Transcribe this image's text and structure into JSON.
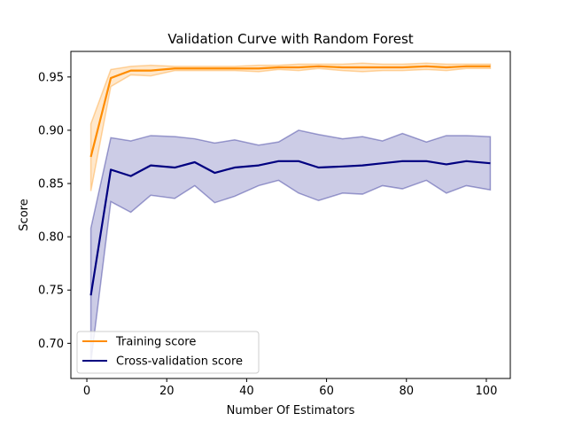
{
  "chart_data": {
    "type": "line",
    "title": "Validation Curve with Random Forest",
    "xlabel": "Number Of  Estimators",
    "ylabel": "Score",
    "xlim": [
      -4,
      106
    ],
    "ylim": [
      0.667,
      0.974
    ],
    "xticks": [
      0,
      20,
      40,
      60,
      80,
      100
    ],
    "yticks": [
      0.7,
      0.75,
      0.8,
      0.85,
      0.9,
      0.95
    ],
    "xtick_labels": [
      "0",
      "20",
      "40",
      "60",
      "80",
      "100"
    ],
    "ytick_labels": [
      "0.70",
      "0.75",
      "0.80",
      "0.85",
      "0.90",
      "0.95"
    ],
    "legend_position": "lower-left",
    "x": [
      1,
      6,
      11,
      16,
      22,
      27,
      32,
      37,
      43,
      48,
      53,
      58,
      64,
      69,
      74,
      79,
      85,
      90,
      95,
      101
    ],
    "series": [
      {
        "name": "Training score",
        "color": "#ff8c00",
        "values": [
          0.875,
          0.949,
          0.956,
          0.956,
          0.958,
          0.958,
          0.958,
          0.958,
          0.958,
          0.959,
          0.959,
          0.96,
          0.959,
          0.959,
          0.959,
          0.959,
          0.96,
          0.959,
          0.96,
          0.96
        ],
        "lower": [
          0.843,
          0.941,
          0.952,
          0.951,
          0.956,
          0.956,
          0.956,
          0.956,
          0.955,
          0.957,
          0.956,
          0.958,
          0.956,
          0.955,
          0.956,
          0.956,
          0.957,
          0.956,
          0.958,
          0.958
        ],
        "upper": [
          0.906,
          0.957,
          0.96,
          0.961,
          0.96,
          0.96,
          0.96,
          0.96,
          0.961,
          0.961,
          0.962,
          0.962,
          0.962,
          0.963,
          0.962,
          0.962,
          0.963,
          0.962,
          0.962,
          0.962
        ]
      },
      {
        "name": "Cross-validation score",
        "color": "#000080",
        "values": [
          0.745,
          0.863,
          0.857,
          0.867,
          0.865,
          0.87,
          0.86,
          0.865,
          0.867,
          0.871,
          0.871,
          0.865,
          0.866,
          0.867,
          0.869,
          0.871,
          0.871,
          0.868,
          0.871,
          0.869
        ],
        "lower": [
          0.682,
          0.833,
          0.823,
          0.839,
          0.836,
          0.848,
          0.832,
          0.838,
          0.848,
          0.853,
          0.841,
          0.834,
          0.841,
          0.84,
          0.848,
          0.845,
          0.853,
          0.841,
          0.848,
          0.844
        ],
        "upper": [
          0.808,
          0.893,
          0.89,
          0.895,
          0.894,
          0.892,
          0.888,
          0.891,
          0.886,
          0.889,
          0.9,
          0.896,
          0.892,
          0.894,
          0.89,
          0.897,
          0.889,
          0.895,
          0.895,
          0.894
        ]
      }
    ]
  }
}
